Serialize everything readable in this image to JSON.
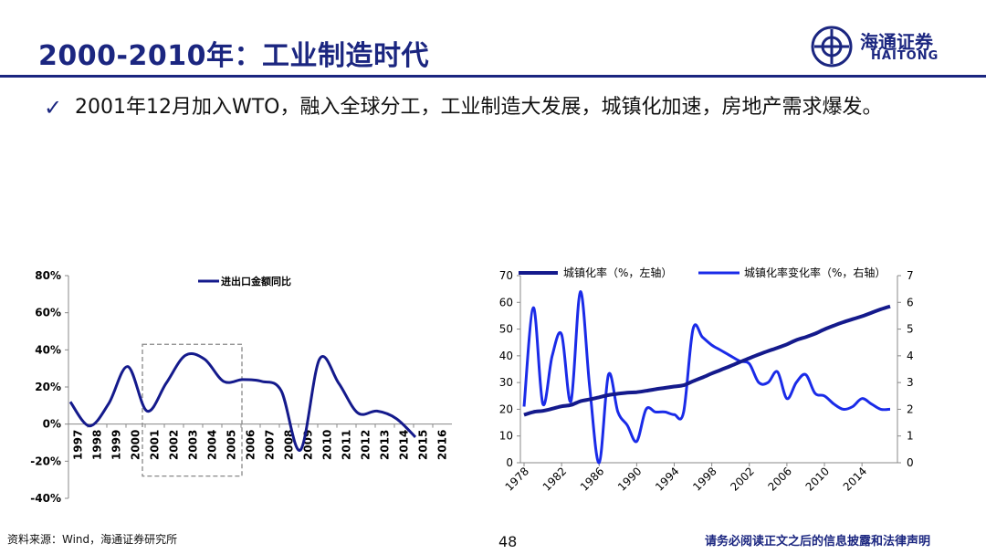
{
  "header": {
    "title": "2000-2010年：工业制造时代",
    "logo_cn": "海通证券",
    "logo_en": "HAITONG"
  },
  "bullet": {
    "text": "2001年12月加入WTO，融入全球分工，工业制造大发展，城镇化加速，房地产需求爆发。"
  },
  "chart_data": [
    {
      "type": "line",
      "title": "",
      "legend": [
        "进出口金额同比"
      ],
      "legend_position": "top",
      "ylim": [
        -0.4,
        0.8
      ],
      "y_ticks": [
        "80%",
        "60%",
        "40%",
        "20%",
        "0%",
        "-20%",
        "-40%"
      ],
      "x_ticks": [
        "1997",
        "1998",
        "1999",
        "2000",
        "2001",
        "2002",
        "2003",
        "2004",
        "2005",
        "2006",
        "2007",
        "2008",
        "2009",
        "2010",
        "2011",
        "2012",
        "2013",
        "2014",
        "2015",
        "2016"
      ],
      "series": [
        {
          "name": "进出口金额同比",
          "x": [
            1997,
            1998,
            1999,
            2000,
            2001,
            2002,
            2003,
            2004,
            2005,
            2006,
            2007,
            2008,
            2009,
            2010,
            2011,
            2012,
            2013,
            2014,
            2015
          ],
          "values": [
            0.12,
            -0.01,
            0.11,
            0.31,
            0.07,
            0.22,
            0.37,
            0.35,
            0.23,
            0.24,
            0.23,
            0.18,
            -0.14,
            0.35,
            0.22,
            0.06,
            0.07,
            0.03,
            -0.07
          ]
        }
      ],
      "highlight": {
        "x_from": "2001",
        "x_to": "2005"
      },
      "grid": false
    },
    {
      "type": "line",
      "title": "",
      "legend": [
        "城镇化率（%，左轴）",
        "城镇化率变化率（%，右轴）"
      ],
      "legend_position": "top",
      "ylim_left": [
        0,
        70
      ],
      "ylim_right": [
        0,
        7
      ],
      "y_ticks_left": [
        "70",
        "60",
        "50",
        "40",
        "30",
        "20",
        "10",
        "0"
      ],
      "y_ticks_right": [
        "7",
        "6",
        "5",
        "4",
        "3",
        "2",
        "1",
        "0"
      ],
      "x_ticks": [
        "1978",
        "1982",
        "1986",
        "1990",
        "1994",
        "1998",
        "2002",
        "2006",
        "2010",
        "2014"
      ],
      "series": [
        {
          "name": "城镇化率（%，左轴）",
          "axis": "left",
          "x": [
            1978,
            1979,
            1980,
            1981,
            1982,
            1983,
            1984,
            1985,
            1986,
            1987,
            1988,
            1989,
            1990,
            1991,
            1992,
            1993,
            1994,
            1995,
            1996,
            1997,
            1998,
            1999,
            2000,
            2001,
            2002,
            2003,
            2004,
            2005,
            2006,
            2007,
            2008,
            2009,
            2010,
            2011,
            2012,
            2013,
            2014,
            2015,
            2016,
            2017
          ],
          "values": [
            17.9,
            19.0,
            19.4,
            20.2,
            21.1,
            21.6,
            23.0,
            23.7,
            24.5,
            25.3,
            25.8,
            26.2,
            26.4,
            26.9,
            27.5,
            28.0,
            28.5,
            29.0,
            30.5,
            31.9,
            33.4,
            34.8,
            36.2,
            37.7,
            39.1,
            40.5,
            41.8,
            43.0,
            44.3,
            45.9,
            47.0,
            48.3,
            49.9,
            51.3,
            52.6,
            53.7,
            54.8,
            56.1,
            57.4,
            58.5
          ]
        },
        {
          "name": "城镇化率变化率（%，右轴）",
          "axis": "right",
          "x": [
            1978,
            1979,
            1980,
            1981,
            1982,
            1983,
            1984,
            1985,
            1986,
            1987,
            1988,
            1989,
            1990,
            1991,
            1992,
            1993,
            1994,
            1995,
            1996,
            1997,
            1998,
            1999,
            2000,
            2001,
            2002,
            2003,
            2004,
            2005,
            2006,
            2007,
            2008,
            2009,
            2010,
            2011,
            2012,
            2013,
            2014,
            2015,
            2016,
            2017
          ],
          "values": [
            2.1,
            5.8,
            2.2,
            4.0,
            4.8,
            2.3,
            6.4,
            2.8,
            0.0,
            3.3,
            1.9,
            1.4,
            0.8,
            2.0,
            1.9,
            1.9,
            1.8,
            1.9,
            5.0,
            4.7,
            4.4,
            4.2,
            4.0,
            3.8,
            3.7,
            3.0,
            3.0,
            3.4,
            2.4,
            3.0,
            3.3,
            2.6,
            2.5,
            2.2,
            2.0,
            2.1,
            2.4,
            2.2,
            2.0,
            2.0
          ]
        }
      ],
      "grid": false
    }
  ],
  "footer": {
    "source": "资料来源：Wind，海通证券研究所",
    "page_number": "48",
    "disclaimer": "请务必阅读正文之后的信息披露和法律声明"
  }
}
